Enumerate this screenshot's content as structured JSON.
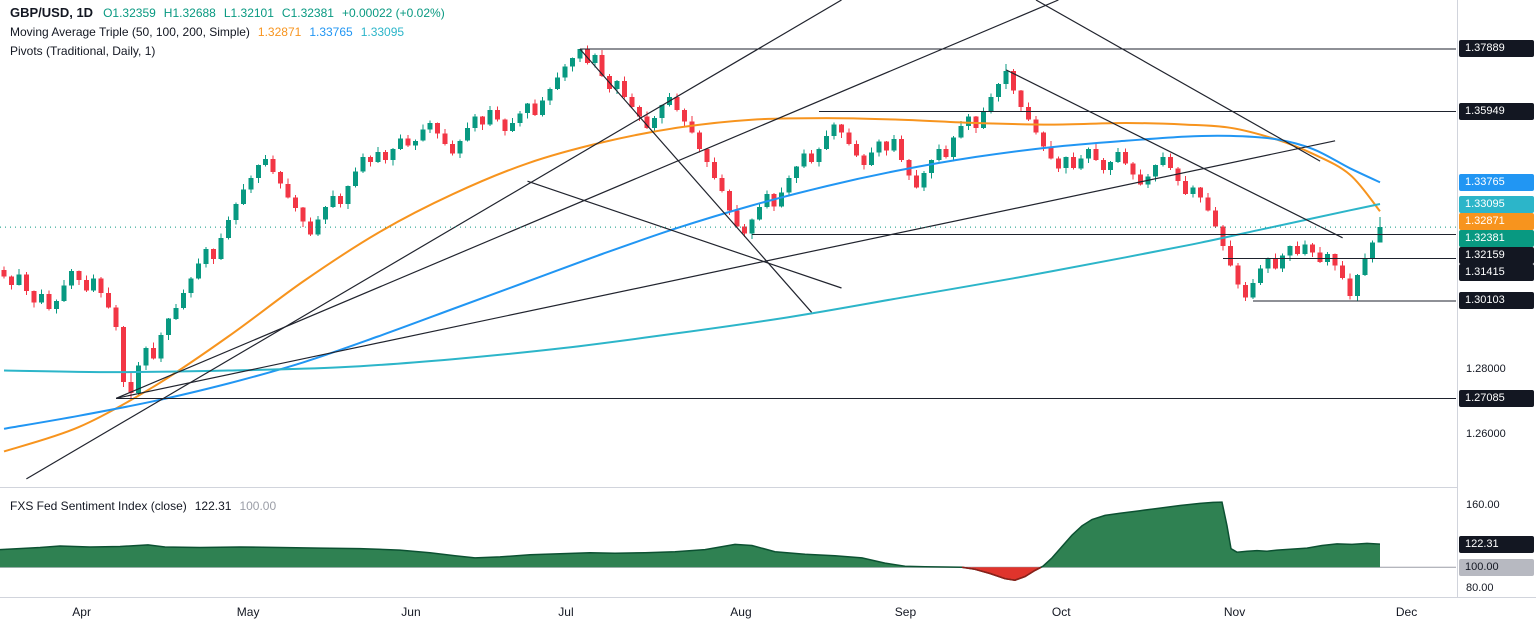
{
  "chart_data": {
    "main": {
      "type": "candlestick",
      "symbol": "GBP/USD",
      "interval": "1D",
      "legend": {
        "symbol": "GBP/USD, 1D",
        "o": "O1.32359",
        "h": "H1.32688",
        "l": "L1.32101",
        "c": "C1.32381",
        "change": "+0.00022 (+0.02%)",
        "value_color": "#089981",
        "ma_title": "Moving Average Triple (50, 100, 200, Simple)",
        "pivots_title": "Pivots (Traditional, Daily, 1)"
      },
      "ohlc": {
        "open": 1.32359,
        "high": 1.32688,
        "low": 1.32101,
        "close": 1.32381
      },
      "price_range": [
        1.2435,
        1.394
      ],
      "candle_colors": {
        "up": "#089981",
        "down": "#f23645"
      },
      "series": {
        "first_open": 1.3105,
        "closes": [
          1.3085,
          1.306,
          1.3092,
          1.304,
          1.3005,
          1.3032,
          1.2985,
          1.301,
          1.3058,
          1.3102,
          1.3075,
          1.3042,
          1.308,
          1.3035,
          1.299,
          1.293,
          1.276,
          1.2725,
          1.281,
          1.2865,
          1.2832,
          1.2905,
          1.2955,
          1.2988,
          1.3035,
          1.308,
          1.3125,
          1.317,
          1.314,
          1.3205,
          1.326,
          1.331,
          1.3355,
          1.339,
          1.343,
          1.3448,
          1.3408,
          1.3372,
          1.333,
          1.3298,
          1.3255,
          1.3215,
          1.3262,
          1.33,
          1.3335,
          1.331,
          1.3365,
          1.341,
          1.3455,
          1.344,
          1.347,
          1.3445,
          1.348,
          1.3512,
          1.349,
          1.3505,
          1.354,
          1.356,
          1.3528,
          1.3495,
          1.3465,
          1.3505,
          1.3545,
          1.358,
          1.3555,
          1.36,
          1.357,
          1.3535,
          1.356,
          1.359,
          1.362,
          1.3585,
          1.363,
          1.3665,
          1.37,
          1.3735,
          1.376,
          1.3788,
          1.3745,
          1.377,
          1.3705,
          1.3665,
          1.369,
          1.364,
          1.361,
          1.358,
          1.3545,
          1.3575,
          1.3615,
          1.364,
          1.36,
          1.3565,
          1.353,
          1.348,
          1.344,
          1.339,
          1.335,
          1.329,
          1.324,
          1.3218,
          1.3262,
          1.33,
          1.334,
          1.3302,
          1.3345,
          1.339,
          1.3425,
          1.3465,
          1.344,
          1.348,
          1.352,
          1.3555,
          1.353,
          1.3495,
          1.346,
          1.343,
          1.3468,
          1.3502,
          1.3475,
          1.351,
          1.3445,
          1.3398,
          1.336,
          1.3405,
          1.3445,
          1.348,
          1.3455,
          1.3515,
          1.355,
          1.358,
          1.3545,
          1.3595,
          1.364,
          1.368,
          1.372,
          1.366,
          1.361,
          1.357,
          1.353,
          1.3488,
          1.345,
          1.342,
          1.3455,
          1.342,
          1.345,
          1.348,
          1.3445,
          1.3415,
          1.344,
          1.347,
          1.3435,
          1.34,
          1.337,
          1.3395,
          1.343,
          1.3455,
          1.342,
          1.338,
          1.334,
          1.336,
          1.333,
          1.329,
          1.324,
          1.318,
          1.312,
          1.306,
          1.302,
          1.3065,
          1.311,
          1.314,
          1.311,
          1.315,
          1.318,
          1.3155,
          1.3185,
          1.316,
          1.313,
          1.3155,
          1.312,
          1.308,
          1.3025,
          1.309,
          1.314,
          1.319,
          1.3238
        ],
        "wick_overrides": {
          "17": [
            1.279,
            1.27085
          ],
          "77": [
            1.37889,
            1.3748
          ],
          "134": [
            1.3742,
            1.3665
          ],
          "166": [
            1.3068,
            1.30103
          ],
          "180": [
            1.3095,
            1.3015
          ],
          "184": [
            1.32688,
            1.32101
          ]
        }
      },
      "ma": [
        {
          "name": "SMA 50",
          "label": "1.32871",
          "color": "#f7941e",
          "points": [
            [
              0,
              1.2545
            ],
            [
              10,
              1.262
            ],
            [
              20,
              1.2745
            ],
            [
              30,
              1.29
            ],
            [
              40,
              1.307
            ],
            [
              50,
              1.322
            ],
            [
              60,
              1.334
            ],
            [
              70,
              1.3435
            ],
            [
              80,
              1.35
            ],
            [
              90,
              1.3545
            ],
            [
              100,
              1.357
            ],
            [
              110,
              1.3575
            ],
            [
              120,
              1.357
            ],
            [
              130,
              1.356
            ],
            [
              140,
              1.3555
            ],
            [
              150,
              1.356
            ],
            [
              158,
              1.3555
            ],
            [
              164,
              1.3545
            ],
            [
              170,
              1.351
            ],
            [
              175,
              1.3465
            ],
            [
              180,
              1.34
            ],
            [
              184,
              1.32871
            ]
          ]
        },
        {
          "name": "SMA 100",
          "label": "1.33765",
          "color": "#2196f3",
          "points": [
            [
              0,
              1.2615
            ],
            [
              10,
              1.2655
            ],
            [
              20,
              1.27
            ],
            [
              30,
              1.2755
            ],
            [
              40,
              1.282
            ],
            [
              50,
              1.29
            ],
            [
              60,
              1.2985
            ],
            [
              70,
              1.307
            ],
            [
              80,
              1.3155
            ],
            [
              90,
              1.3235
            ],
            [
              100,
              1.3305
            ],
            [
              110,
              1.3365
            ],
            [
              120,
              1.3415
            ],
            [
              130,
              1.3455
            ],
            [
              140,
              1.3485
            ],
            [
              150,
              1.3505
            ],
            [
              158,
              1.3518
            ],
            [
              164,
              1.352
            ],
            [
              170,
              1.351
            ],
            [
              175,
              1.348
            ],
            [
              180,
              1.342
            ],
            [
              184,
              1.33765
            ]
          ]
        },
        {
          "name": "SMA 200",
          "label": "1.33095",
          "color": "#2cb5c9",
          "points": [
            [
              0,
              1.2795
            ],
            [
              15,
              1.279
            ],
            [
              30,
              1.2795
            ],
            [
              45,
              1.2805
            ],
            [
              60,
              1.283
            ],
            [
              75,
              1.2865
            ],
            [
              90,
              1.291
            ],
            [
              105,
              1.296
            ],
            [
              120,
              1.302
            ],
            [
              135,
              1.308
            ],
            [
              150,
              1.3145
            ],
            [
              160,
              1.319
            ],
            [
              168,
              1.323
            ],
            [
              175,
              1.3265
            ],
            [
              180,
              1.329
            ],
            [
              184,
              1.33095
            ]
          ]
        }
      ],
      "pivot_levels": [
        {
          "label": "1.37889",
          "price": 1.37889,
          "from": 77
        },
        {
          "label": "1.35949",
          "price": 1.35949,
          "from": 109
        },
        {
          "label": "1.32159",
          "price": 1.32159,
          "from": 100
        },
        {
          "label": "1.31415",
          "price": 1.31415,
          "from": 163
        },
        {
          "label": "1.30103",
          "price": 1.30103,
          "from": 167
        },
        {
          "label": "1.27085",
          "price": 1.27085,
          "from": 15
        }
      ],
      "current_price": {
        "label": "1.32381",
        "value": 1.32381,
        "color": "#089981"
      },
      "trend_lines": [
        {
          "from": [
            15,
            1.2709
          ],
          "to": [
            178,
            1.3505
          ]
        },
        {
          "from": [
            15,
            1.2709
          ],
          "to": [
            141,
            1.394
          ]
        },
        {
          "from": [
            3,
            1.246
          ],
          "to": [
            112,
            1.394
          ]
        },
        {
          "from": [
            77,
            1.3789
          ],
          "to": [
            108,
            1.2975
          ]
        },
        {
          "from": [
            70,
            1.338
          ],
          "to": [
            112,
            1.305
          ]
        },
        {
          "from": [
            134,
            1.3724
          ],
          "to": [
            179,
            1.3205
          ]
        },
        {
          "from": [
            138,
            1.394
          ],
          "to": [
            176,
            1.3442
          ]
        }
      ],
      "axis_plain": [
        {
          "label": "1.28000",
          "price": 1.28
        },
        {
          "label": "1.26000",
          "price": 1.26
        }
      ],
      "months": [
        [
          "Apr",
          11
        ],
        [
          "May",
          33
        ],
        [
          "Jun",
          55
        ],
        [
          "Jul",
          76
        ],
        [
          "Aug",
          99
        ],
        [
          "Sep",
          121
        ],
        [
          "Oct",
          142
        ],
        [
          "Nov",
          165
        ],
        [
          "Dec",
          188
        ]
      ]
    },
    "sentiment": {
      "type": "area",
      "legend": {
        "title": "FXS Fed Sentiment Index (close)",
        "value": "122.31",
        "param": "100.00"
      },
      "baseline": 100,
      "last_value": 122.31,
      "value_range": [
        80,
        160
      ],
      "colors": {
        "fill_up": "#2f8152",
        "fill_down": "#e0342c",
        "line_up": "#0c5132",
        "line_down": "#8f1d18",
        "baseline": "#9b9ea7"
      },
      "points": [
        [
          0,
          117
        ],
        [
          40,
          119
        ],
        [
          60,
          120.5
        ],
        [
          90,
          119.5
        ],
        [
          120,
          120
        ],
        [
          148,
          121.5
        ],
        [
          165,
          119.5
        ],
        [
          200,
          119
        ],
        [
          240,
          119.5
        ],
        [
          280,
          119
        ],
        [
          320,
          118.5
        ],
        [
          360,
          118
        ],
        [
          400,
          116.5
        ],
        [
          430,
          114
        ],
        [
          455,
          111
        ],
        [
          475,
          109
        ],
        [
          500,
          110
        ],
        [
          530,
          112
        ],
        [
          560,
          113
        ],
        [
          590,
          114
        ],
        [
          615,
          113.5
        ],
        [
          645,
          114
        ],
        [
          675,
          115
        ],
        [
          705,
          117
        ],
        [
          735,
          122
        ],
        [
          752,
          121
        ],
        [
          775,
          115
        ],
        [
          805,
          112.5
        ],
        [
          835,
          111
        ],
        [
          862,
          109
        ],
        [
          885,
          104
        ],
        [
          905,
          101
        ],
        [
          925,
          100.4
        ],
        [
          945,
          100.2
        ],
        [
          962,
          100
        ],
        [
          975,
          98
        ],
        [
          990,
          94
        ],
        [
          1005,
          89
        ],
        [
          1015,
          87.5
        ],
        [
          1025,
          91
        ],
        [
          1035,
          97
        ],
        [
          1043,
          101
        ],
        [
          1052,
          109
        ],
        [
          1062,
          120
        ],
        [
          1072,
          131
        ],
        [
          1082,
          140
        ],
        [
          1092,
          146
        ],
        [
          1105,
          150
        ],
        [
          1120,
          152
        ],
        [
          1140,
          154.5
        ],
        [
          1160,
          157
        ],
        [
          1180,
          159.5
        ],
        [
          1200,
          161.5
        ],
        [
          1213,
          162.5
        ],
        [
          1222,
          162.8
        ],
        [
          1227,
          140
        ],
        [
          1231,
          118
        ],
        [
          1237,
          114.5
        ],
        [
          1247,
          115.5
        ],
        [
          1257,
          116
        ],
        [
          1267,
          115.5
        ],
        [
          1277,
          116.5
        ],
        [
          1292,
          117.5
        ],
        [
          1307,
          118.5
        ],
        [
          1322,
          121
        ],
        [
          1337,
          122.5
        ],
        [
          1352,
          122
        ],
        [
          1367,
          123
        ],
        [
          1380,
          122.31
        ]
      ],
      "axis_plain": [
        {
          "label": "160.00",
          "v": 160
        },
        {
          "label": "80.00",
          "v": 80
        }
      ],
      "badges": [
        {
          "label": "122.31",
          "v": 122.31,
          "bg": "#131722",
          "fg": "#ffffff"
        },
        {
          "label": "100.00",
          "v": 100,
          "bg": "#b7b9c1",
          "fg": "#131722"
        }
      ]
    }
  }
}
